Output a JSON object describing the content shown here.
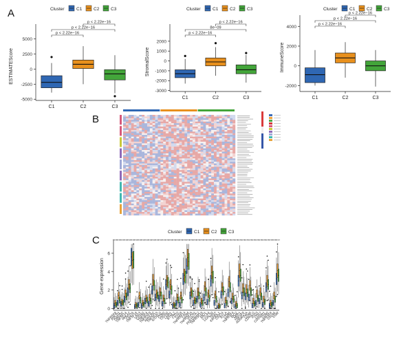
{
  "panels": {
    "A": "A",
    "B": "B",
    "C": "C"
  },
  "legend": {
    "title": "Cluster",
    "labels": [
      "C1",
      "C2",
      "C3"
    ]
  },
  "colors": {
    "C1": "#2f67b3",
    "C2": "#e8901d",
    "C3": "#43a53a"
  },
  "chart_data": [
    {
      "type": "box",
      "ylabel": "ESTIMATEScore",
      "categories": [
        "C1",
        "C2",
        "C3"
      ],
      "yticks": [
        -5000,
        -2500,
        0,
        2500,
        5000
      ],
      "ylim": [
        -5200,
        6100
      ],
      "boxes": [
        {
          "whisker_low": -3900,
          "q1": -3100,
          "median": -2200,
          "q3": -1100,
          "whisker_high": 1000,
          "outliers": [
            2000
          ]
        },
        {
          "whisker_low": -2500,
          "q1": 100,
          "median": 800,
          "q3": 1500,
          "whisker_high": 3800,
          "outliers": []
        },
        {
          "whisker_low": -4000,
          "q1": -1800,
          "median": -800,
          "q3": -100,
          "whisker_high": 2300,
          "outliers": [
            -4500
          ]
        }
      ],
      "comparisons": [
        {
          "label": "p < 2.22e−16",
          "groups": [
            "C2",
            "C3"
          ]
        },
        {
          "label": "p < 2.22e−16",
          "groups": [
            "C1",
            "C3"
          ]
        },
        {
          "label": "p < 2.22e−16",
          "groups": [
            "C1",
            "C2"
          ]
        }
      ]
    },
    {
      "type": "box",
      "ylabel": "StromalScore",
      "categories": [
        "C1",
        "C2",
        "C3"
      ],
      "yticks": [
        -3000,
        -2000,
        -1000,
        0,
        1000,
        2000
      ],
      "ylim": [
        -3100,
        2900
      ],
      "boxes": [
        {
          "whisker_low": -2300,
          "q1": -1700,
          "median": -1300,
          "q3": -900,
          "whisker_high": 200,
          "outliers": [
            500
          ]
        },
        {
          "whisker_low": -1500,
          "q1": -500,
          "median": -100,
          "q3": 300,
          "whisker_high": 1400,
          "outliers": [
            1800
          ]
        },
        {
          "whisker_low": -2200,
          "q1": -1300,
          "median": -900,
          "q3": -400,
          "whisker_high": 600,
          "outliers": [
            800
          ]
        }
      ],
      "comparisons": [
        {
          "label": "p < 2.22e−16",
          "groups": [
            "C2",
            "C3"
          ]
        },
        {
          "label": "8e−09",
          "groups": [
            "C1",
            "C3"
          ]
        },
        {
          "label": "p < 2.22e−16",
          "groups": [
            "C1",
            "C2"
          ]
        }
      ]
    },
    {
      "type": "box",
      "ylabel": "ImmuneScore",
      "categories": [
        "C1",
        "C2",
        "C3"
      ],
      "yticks": [
        -2000,
        0,
        2000,
        4000
      ],
      "ylim": [
        -2600,
        4300
      ],
      "boxes": [
        {
          "whisker_low": -2000,
          "q1": -1700,
          "median": -900,
          "q3": -200,
          "whisker_high": 1600,
          "outliers": []
        },
        {
          "whisker_low": -1200,
          "q1": 300,
          "median": 800,
          "q3": 1300,
          "whisker_high": 2400,
          "outliers": []
        },
        {
          "whisker_low": -2100,
          "q1": -500,
          "median": 0,
          "q3": 500,
          "whisker_high": 1600,
          "outliers": []
        }
      ],
      "comparisons": [
        {
          "label": "p < 2.22e−16",
          "groups": [
            "C2",
            "C3"
          ]
        },
        {
          "label": "p < 2.22e−16",
          "groups": [
            "C1",
            "C3"
          ]
        },
        {
          "label": "p < 2.22e−16",
          "groups": [
            "C1",
            "C2"
          ]
        }
      ]
    },
    {
      "type": "heatmap",
      "column_groups": [
        "C1",
        "C2",
        "C3"
      ],
      "row_group_colors": [
        "#d6597b",
        "#d6597b",
        "#c8c83a",
        "#8f6ab8",
        "#9fa8d6",
        "#8f6ab8",
        "#41b8b0",
        "#41b8b0",
        "#e8a33a"
      ],
      "scale_colors": [
        "#3556a8",
        "#ffffff",
        "#d93a3a"
      ]
    },
    {
      "type": "box",
      "ylabel": "Gene expression",
      "categories": [
        "TNFRSF8",
        "PDCD1",
        "TMIGD2",
        "TNFSF14",
        "HHLA2",
        "CD276",
        "TNFSF18",
        "LAG3",
        "CD160",
        "TNFSF4",
        "TNFRSF9",
        "HAVCR2",
        "TNFSF15",
        "ICOSLG",
        "CD80",
        "CD200",
        "LAIR1",
        "BTNL2",
        "CD70",
        "CD28",
        "TNFRSF14",
        "CD44",
        "TNFRSF25",
        "VTCN1",
        "PDCD1LG2",
        "TNFRSF18",
        "IDO1",
        "CTLA4",
        "LGALS9",
        "TIGIT",
        "KIR3DL1",
        "CD274",
        "BTLA",
        "CD86",
        "TNFRSF4",
        "IDO2",
        "NRP1",
        "TNFSF9",
        "ADORA2A",
        "CD48",
        "CD40LG",
        "ICOS",
        "CD27",
        "CD200R1",
        "CD40",
        "TNFRSF8b",
        "CD244",
        "VSIR"
      ],
      "display_categories": [
        "TNFRSF8",
        "PDCD1",
        "TMIGD2",
        "TNFSF14",
        "HHLA2",
        "CD276",
        "TNFSF18",
        "LAG3",
        "CD160",
        "TNFSF4",
        "TNFRSF9",
        "HAVCR2",
        "TNFSF15",
        "ICOSLG",
        "CD80",
        "CD200",
        "LAIR1",
        "BTNL2",
        "CD70",
        "CD28",
        "TNFRSF14",
        "CD44",
        "TNFRSF25",
        "VTCN1",
        "PDCD1LG2",
        "TNFRSF18",
        "IDO1",
        "CTLA4",
        "LGALS9",
        "TIGIT",
        "KIR3DL1",
        "CD274",
        "BTLA",
        "CD86",
        "TNFRSF4",
        "IDO2",
        "NRP1",
        "TNFSF9",
        "ADORA2A",
        "CD48",
        "CD40LG",
        "ICOS",
        "CD27",
        "CD200R1",
        "CD40",
        "TNFRSF8",
        "CD244",
        "VSIR"
      ],
      "yticks": [
        0,
        2,
        4,
        6
      ],
      "ylim": [
        -0.2,
        7.2
      ],
      "medians": {
        "C1": [
          0.3,
          0.6,
          0.5,
          1.0,
          1.8,
          5.6,
          0.2,
          0.4,
          0.3,
          0.8,
          0.5,
          2.0,
          1.2,
          1.1,
          0.5,
          2.6,
          1.5,
          0.3,
          0.6,
          0.4,
          3.2,
          4.6,
          1.4,
          0.6,
          1.0,
          0.4,
          1.2,
          0.7,
          3.0,
          0.6,
          0.1,
          1.5,
          0.3,
          1.7,
          0.8,
          0.2,
          3.0,
          1.4,
          1.3,
          1.2,
          0.3,
          0.6,
          0.8,
          0.4,
          2.3,
          0.3,
          0.6,
          3.2
        ],
        "C2": [
          0.6,
          1.4,
          0.7,
          1.6,
          2.6,
          5.2,
          0.4,
          1.4,
          0.6,
          1.1,
          1.2,
          3.1,
          1.6,
          1.8,
          1.1,
          3.0,
          2.6,
          0.4,
          1.2,
          1.4,
          3.6,
          5.5,
          1.8,
          0.9,
          1.8,
          0.8,
          2.4,
          1.6,
          3.9,
          1.5,
          0.3,
          2.3,
          0.9,
          2.9,
          1.3,
          0.5,
          4.1,
          2.2,
          2.1,
          2.5,
          0.8,
          1.6,
          1.8,
          1.0,
          3.0,
          0.6,
          1.4,
          4.1
        ],
        "C3": [
          0.4,
          0.9,
          0.6,
          1.3,
          2.2,
          5.3,
          0.3,
          0.9,
          0.4,
          0.9,
          0.8,
          2.5,
          1.4,
          1.4,
          0.8,
          2.8,
          2.0,
          0.3,
          0.9,
          0.9,
          3.4,
          5.1,
          1.6,
          0.8,
          1.4,
          0.6,
          1.8,
          1.1,
          3.4,
          1.0,
          0.2,
          1.9,
          0.6,
          2.3,
          1.0,
          0.3,
          3.6,
          1.8,
          1.7,
          1.8,
          0.5,
          1.1,
          1.3,
          0.7,
          2.6,
          0.4,
          1.0,
          3.6
        ]
      },
      "significance": "****"
    }
  ]
}
